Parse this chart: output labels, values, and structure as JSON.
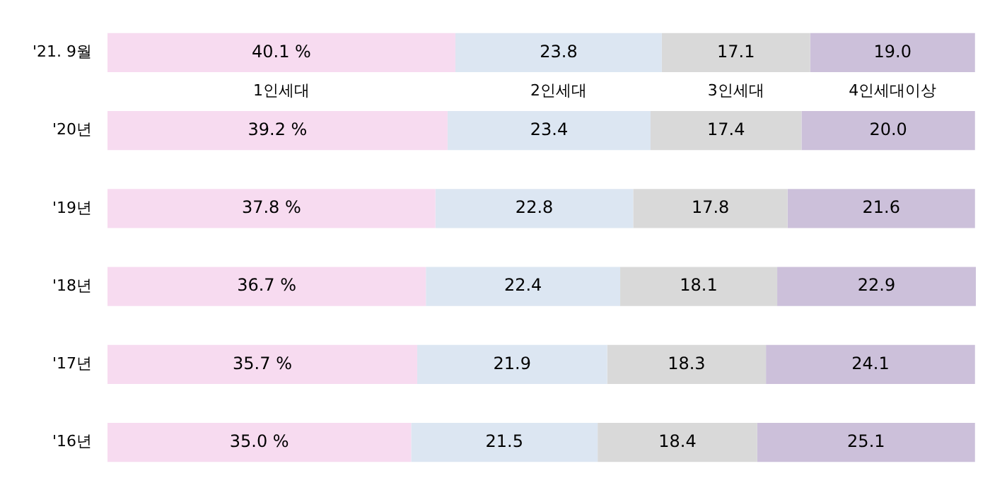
{
  "chart_data": {
    "type": "bar",
    "orientation": "horizontal",
    "stacked": true,
    "legend": false,
    "tick_labels": "y",
    "categories": [
      "'21. 9월",
      "'20년",
      "'19년",
      "'18년",
      "'17년",
      "'16년"
    ],
    "series": [
      {
        "name": "1인세대",
        "color": "#f7dbf0",
        "values": [
          40.1,
          39.2,
          37.8,
          36.7,
          35.7,
          35.0
        ],
        "value_labels": [
          "40.1 %",
          "39.2 %",
          "37.8 %",
          "36.7 %",
          "35.7 %",
          "35.0 %"
        ]
      },
      {
        "name": "2인세대",
        "color": "#dce6f2",
        "values": [
          23.8,
          23.4,
          22.8,
          22.4,
          21.9,
          21.5
        ],
        "value_labels": [
          "23.8",
          "23.4",
          "22.8",
          "22.4",
          "21.9",
          "21.5"
        ]
      },
      {
        "name": "3인세대",
        "color": "#d9d9d9",
        "values": [
          17.1,
          17.4,
          17.8,
          18.1,
          18.3,
          18.4
        ],
        "value_labels": [
          "17.1",
          "17.4",
          "17.8",
          "18.1",
          "18.3",
          "18.4"
        ]
      },
      {
        "name": "4인세대이상",
        "color": "#ccc0da",
        "values": [
          19.0,
          20.0,
          21.6,
          22.9,
          24.1,
          25.1
        ],
        "value_labels": [
          "19.0",
          "20.0",
          "21.6",
          "22.9",
          "24.1",
          "25.1"
        ]
      }
    ]
  }
}
